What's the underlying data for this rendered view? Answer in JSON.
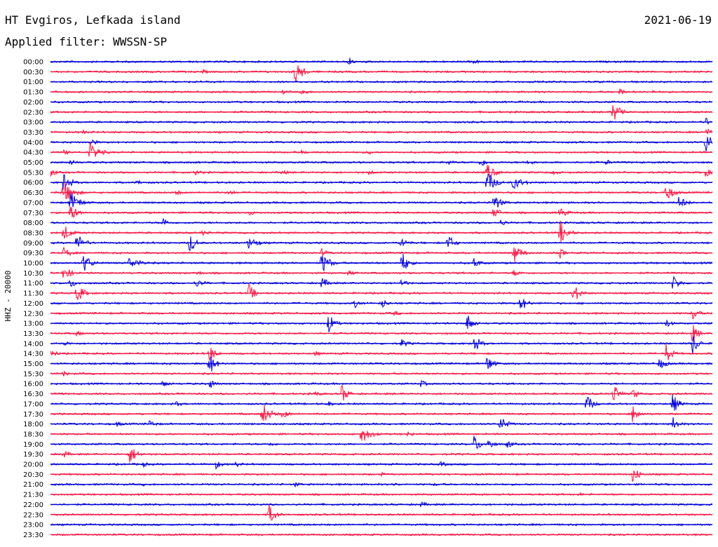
{
  "header": {
    "station": "HT Evgiros, Lefkada island",
    "date": "2021-06-19",
    "filter": "Applied filter: WWSSN-SP"
  },
  "chart_data": {
    "type": "line",
    "title": "HT Evgiros, Lefkada island",
    "ylabel": "HHZ - 20000",
    "row_labels": [
      "00:00",
      "00:30",
      "01:00",
      "01:30",
      "02:00",
      "02:30",
      "03:00",
      "03:30",
      "04:00",
      "04:30",
      "05:00",
      "05:30",
      "06:00",
      "06:30",
      "07:00",
      "07:30",
      "08:00",
      "08:30",
      "09:00",
      "09:30",
      "10:00",
      "10:30",
      "11:00",
      "11:30",
      "12:00",
      "12:30",
      "13:00",
      "13:30",
      "14:00",
      "14:30",
      "15:00",
      "15:30",
      "16:00",
      "16:30",
      "17:00",
      "17:30",
      "18:00",
      "18:30",
      "19:00",
      "19:30",
      "20:00",
      "20:30",
      "21:00",
      "21:30",
      "22:00",
      "22:30",
      "23:00",
      "23:30"
    ],
    "colors": [
      "#0000dd",
      "#ff1744"
    ],
    "series": [
      {
        "row": "00:00",
        "events": [
          [
            0.45,
            0.6,
            6
          ],
          [
            0.64,
            0.3,
            8
          ]
        ]
      },
      {
        "row": "00:30",
        "events": [
          [
            0.23,
            0.25,
            10
          ],
          [
            0.37,
            1.3,
            10
          ],
          [
            0.6,
            0.15,
            6
          ]
        ]
      },
      {
        "row": "01:00",
        "events": [
          [
            0.3,
            0.12,
            6
          ]
        ]
      },
      {
        "row": "01:30",
        "events": [
          [
            0.35,
            0.35,
            6
          ],
          [
            0.38,
            0.5,
            8
          ],
          [
            0.86,
            0.55,
            6
          ],
          [
            0.91,
            0.2,
            6
          ]
        ]
      },
      {
        "row": "02:00",
        "events": []
      },
      {
        "row": "02:30",
        "events": [
          [
            0.85,
            1.1,
            8
          ],
          [
            0.86,
            0.8,
            6
          ]
        ]
      },
      {
        "row": "03:00",
        "events": [
          [
            0.99,
            0.5,
            6
          ]
        ]
      },
      {
        "row": "03:30",
        "events": [
          [
            0.05,
            0.3,
            6
          ],
          [
            0.99,
            0.7,
            6
          ]
        ]
      },
      {
        "row": "04:00",
        "events": [
          [
            0.06,
            0.5,
            8
          ],
          [
            0.99,
            1.2,
            8
          ]
        ]
      },
      {
        "row": "04:30",
        "events": [
          [
            0.02,
            0.3,
            10
          ],
          [
            0.06,
            1.1,
            12
          ],
          [
            0.38,
            0.25,
            10
          ],
          [
            0.48,
            0.25,
            12
          ]
        ]
      },
      {
        "row": "05:00",
        "events": [
          [
            0.03,
            0.3,
            10
          ],
          [
            0.6,
            0.3,
            10
          ],
          [
            0.65,
            0.5,
            10
          ],
          [
            0.72,
            0.35,
            10
          ],
          [
            0.84,
            0.3,
            10
          ]
        ]
      },
      {
        "row": "05:30",
        "events": [
          [
            0.0,
            0.5,
            8
          ],
          [
            0.22,
            0.3,
            10
          ],
          [
            0.35,
            0.3,
            10
          ],
          [
            0.48,
            0.3,
            10
          ],
          [
            0.66,
            0.9,
            10
          ],
          [
            0.76,
            0.3,
            10
          ],
          [
            0.99,
            0.5,
            8
          ]
        ]
      },
      {
        "row": "06:00",
        "events": [
          [
            0.02,
            1.0,
            10
          ],
          [
            0.13,
            0.3,
            10
          ],
          [
            0.66,
            1.3,
            10
          ],
          [
            0.7,
            0.7,
            14
          ]
        ]
      },
      {
        "row": "06:30",
        "events": [
          [
            0.02,
            1.3,
            12
          ],
          [
            0.19,
            0.3,
            10
          ],
          [
            0.27,
            0.3,
            10
          ],
          [
            0.93,
            1.0,
            10
          ]
        ]
      },
      {
        "row": "07:00",
        "events": [
          [
            0.03,
            1.1,
            12
          ],
          [
            0.67,
            0.9,
            10
          ],
          [
            0.95,
            0.7,
            10
          ]
        ]
      },
      {
        "row": "07:30",
        "events": [
          [
            0.03,
            0.9,
            10
          ],
          [
            0.3,
            0.3,
            10
          ],
          [
            0.67,
            0.6,
            10
          ],
          [
            0.77,
            0.6,
            10
          ]
        ]
      },
      {
        "row": "08:00",
        "events": [
          [
            0.17,
            0.7,
            6
          ],
          [
            0.68,
            0.35,
            10
          ]
        ]
      },
      {
        "row": "08:30",
        "events": [
          [
            0.02,
            0.9,
            10
          ],
          [
            0.23,
            0.3,
            10
          ],
          [
            0.77,
            1.3,
            10
          ]
        ]
      },
      {
        "row": "09:00",
        "events": [
          [
            0.04,
            1.0,
            10
          ],
          [
            0.21,
            1.1,
            8
          ],
          [
            0.3,
            0.6,
            14
          ],
          [
            0.53,
            0.7,
            8
          ],
          [
            0.6,
            1.0,
            8
          ]
        ]
      },
      {
        "row": "09:30",
        "events": [
          [
            0.02,
            0.6,
            10
          ],
          [
            0.41,
            0.5,
            8
          ],
          [
            0.7,
            1.1,
            10
          ],
          [
            0.77,
            0.6,
            6
          ]
        ]
      },
      {
        "row": "10:00",
        "events": [
          [
            0.05,
            1.0,
            10
          ],
          [
            0.12,
            0.6,
            16
          ],
          [
            0.41,
            1.2,
            10
          ],
          [
            0.53,
            1.4,
            8
          ],
          [
            0.64,
            0.6,
            8
          ]
        ]
      },
      {
        "row": "10:30",
        "events": [
          [
            0.02,
            0.8,
            10
          ],
          [
            0.22,
            0.3,
            10
          ],
          [
            0.45,
            0.3,
            10
          ],
          [
            0.7,
            0.4,
            10
          ]
        ]
      },
      {
        "row": "11:00",
        "events": [
          [
            0.03,
            0.5,
            10
          ],
          [
            0.22,
            0.4,
            14
          ],
          [
            0.41,
            0.6,
            10
          ],
          [
            0.53,
            0.5,
            8
          ],
          [
            0.94,
            0.8,
            10
          ]
        ]
      },
      {
        "row": "11:30",
        "events": [
          [
            0.04,
            1.0,
            10
          ],
          [
            0.3,
            1.0,
            8
          ],
          [
            0.79,
            1.2,
            8
          ]
        ]
      },
      {
        "row": "12:00",
        "events": [
          [
            0.46,
            0.5,
            8
          ],
          [
            0.5,
            0.6,
            8
          ],
          [
            0.71,
            1.0,
            8
          ]
        ]
      },
      {
        "row": "12:30",
        "events": [
          [
            0.52,
            0.3,
            10
          ],
          [
            0.97,
            0.8,
            8
          ]
        ]
      },
      {
        "row": "13:00",
        "events": [
          [
            0.42,
            1.1,
            8
          ],
          [
            0.63,
            1.0,
            8
          ],
          [
            0.93,
            0.5,
            8
          ]
        ]
      },
      {
        "row": "13:30",
        "events": [
          [
            0.04,
            0.3,
            10
          ],
          [
            0.97,
            1.0,
            8
          ]
        ]
      },
      {
        "row": "14:00",
        "events": [
          [
            0.02,
            0.3,
            10
          ],
          [
            0.53,
            0.5,
            10
          ],
          [
            0.64,
            1.1,
            8
          ],
          [
            0.97,
            1.2,
            8
          ]
        ]
      },
      {
        "row": "14:30",
        "events": [
          [
            0.0,
            0.6,
            8
          ],
          [
            0.24,
            1.0,
            8
          ],
          [
            0.4,
            0.3,
            10
          ],
          [
            0.93,
            1.1,
            8
          ]
        ]
      },
      {
        "row": "15:00",
        "events": [
          [
            0.24,
            1.3,
            8
          ],
          [
            0.66,
            1.0,
            8
          ],
          [
            0.92,
            0.6,
            10
          ]
        ]
      },
      {
        "row": "15:30",
        "events": [
          [
            0.02,
            0.3,
            10
          ]
        ]
      },
      {
        "row": "16:00",
        "events": [
          [
            0.17,
            0.5,
            8
          ],
          [
            0.24,
            0.6,
            8
          ],
          [
            0.56,
            0.4,
            8
          ]
        ]
      },
      {
        "row": "16:30",
        "events": [
          [
            0.4,
            0.3,
            10
          ],
          [
            0.44,
            1.0,
            8
          ],
          [
            0.85,
            1.1,
            8
          ],
          [
            0.88,
            0.6,
            8
          ]
        ]
      },
      {
        "row": "17:00",
        "events": [
          [
            0.19,
            0.3,
            10
          ],
          [
            0.42,
            0.3,
            8
          ],
          [
            0.81,
            1.1,
            8
          ],
          [
            0.94,
            1.1,
            8
          ]
        ]
      },
      {
        "row": "17:30",
        "events": [
          [
            0.32,
            1.3,
            10
          ],
          [
            0.35,
            0.5,
            10
          ],
          [
            0.88,
            1.1,
            8
          ]
        ]
      },
      {
        "row": "18:00",
        "events": [
          [
            0.1,
            0.3,
            10
          ],
          [
            0.15,
            0.4,
            10
          ],
          [
            0.68,
            0.8,
            10
          ],
          [
            0.94,
            0.8,
            8
          ]
        ]
      },
      {
        "row": "18:30",
        "events": [
          [
            0.47,
            1.0,
            12
          ],
          [
            0.54,
            0.3,
            10
          ]
        ]
      },
      {
        "row": "19:00",
        "events": [
          [
            0.33,
            0.3,
            10
          ],
          [
            0.64,
            1.0,
            8
          ],
          [
            0.66,
            0.8,
            8
          ],
          [
            0.69,
            0.5,
            8
          ]
        ]
      },
      {
        "row": "19:30",
        "events": [
          [
            0.02,
            0.4,
            10
          ],
          [
            0.12,
            1.0,
            10
          ]
        ]
      },
      {
        "row": "20:00",
        "events": [
          [
            0.14,
            0.3,
            8
          ],
          [
            0.25,
            0.5,
            8
          ],
          [
            0.28,
            0.3,
            10
          ],
          [
            0.59,
            0.3,
            10
          ]
        ]
      },
      {
        "row": "20:30",
        "events": [
          [
            0.88,
            1.0,
            8
          ],
          [
            0.5,
            0.2,
            10
          ]
        ]
      },
      {
        "row": "21:00",
        "events": [
          [
            0.14,
            0.2,
            8
          ],
          [
            0.37,
            0.3,
            8
          ],
          [
            0.52,
            0.2,
            10
          ],
          [
            0.58,
            0.2,
            10
          ]
        ]
      },
      {
        "row": "21:30",
        "events": [
          [
            0.8,
            0.2,
            8
          ]
        ]
      },
      {
        "row": "22:00",
        "events": [
          [
            0.56,
            0.3,
            12
          ]
        ]
      },
      {
        "row": "22:30",
        "events": [
          [
            0.33,
            1.2,
            8
          ]
        ]
      },
      {
        "row": "23:00",
        "events": []
      },
      {
        "row": "23:30",
        "events": []
      }
    ]
  }
}
